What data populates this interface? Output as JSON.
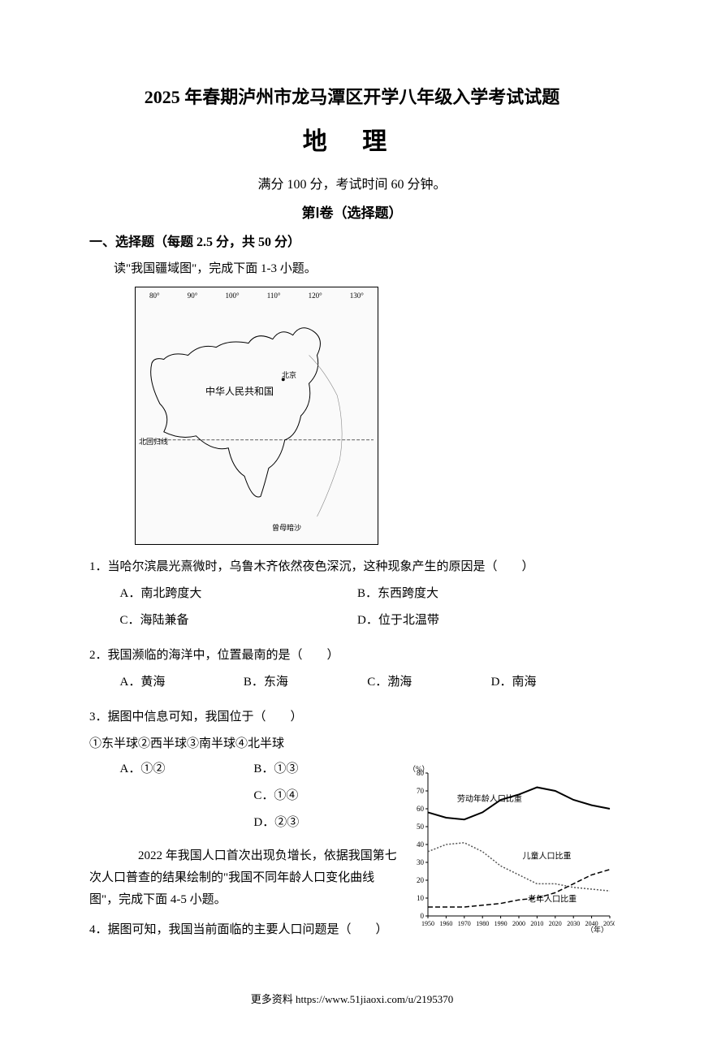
{
  "header": {
    "title_main": "2025 年春期泸州市龙马潭区开学八年级入学考试试题",
    "title_subject": "地 理",
    "exam_info": "满分 100 分，考试时间 60 分钟。",
    "section_header": "第Ⅰ卷（选择题）"
  },
  "section1": {
    "label": "一、选择题（每题 2.5 分，共 50 分）",
    "reading1": "读\"我国疆域图\"，完成下面 1-3 小题。"
  },
  "map": {
    "lons": [
      "80°",
      "90°",
      "100°",
      "110°",
      "120°",
      "130°"
    ],
    "center_label": "中华人民共和国",
    "beijing": "北京",
    "huigui": "北回归线",
    "zengmu": "曾母暗沙"
  },
  "q1": {
    "stem": "1．当哈尔滨晨光熹微时，乌鲁木齐依然夜色深沉，这种现象产生的原因是（　　）",
    "A": "A．南北跨度大",
    "B": "B．东西跨度大",
    "C": "C．海陆兼备",
    "D": "D．位于北温带"
  },
  "q2": {
    "stem": "2．我国濒临的海洋中，位置最南的是（　　）",
    "A": "A．黄海",
    "B": "B．东海",
    "C": "C．渤海",
    "D": "D．南海"
  },
  "q3": {
    "stem": "3．据图中信息可知，我国位于（　　）",
    "sub": "①东半球②西半球③南半球④北半球",
    "A": "A．①②",
    "B": "B．①③",
    "C": "C．①④",
    "D": "D．②③"
  },
  "reading2": "　　2022 年我国人口首次出现负增长，依据我国第七次人口普查的结果绘制的\"我国不同年龄人口变化曲线图\"，完成下面 4-5 小题。",
  "q4": {
    "stem": "4．据图可知，我国当前面临的主要人口问题是（　　）"
  },
  "chart": {
    "ylabel": "（%）",
    "ylim": [
      0,
      80
    ],
    "yticks": [
      0,
      10,
      20,
      30,
      40,
      50,
      60,
      70,
      80
    ],
    "xlabel": "（年）",
    "xticks": [
      1950,
      1960,
      1970,
      1980,
      1990,
      2000,
      2010,
      2020,
      2030,
      2040,
      2050
    ],
    "series": {
      "labor": {
        "label": "劳动年龄人口比重",
        "style": "solid",
        "color": "#000000",
        "width": 2,
        "values": [
          [
            1950,
            58
          ],
          [
            1960,
            55
          ],
          [
            1970,
            54
          ],
          [
            1980,
            58
          ],
          [
            1990,
            65
          ],
          [
            2000,
            68
          ],
          [
            2010,
            72
          ],
          [
            2020,
            70
          ],
          [
            2030,
            65
          ],
          [
            2040,
            62
          ],
          [
            2050,
            60
          ]
        ]
      },
      "child": {
        "label": "儿童人口比重",
        "style": "dotted",
        "color": "#555555",
        "width": 1.5,
        "values": [
          [
            1950,
            36
          ],
          [
            1960,
            40
          ],
          [
            1970,
            41
          ],
          [
            1980,
            36
          ],
          [
            1990,
            28
          ],
          [
            2000,
            23
          ],
          [
            2010,
            18
          ],
          [
            2020,
            18
          ],
          [
            2030,
            16
          ],
          [
            2040,
            15
          ],
          [
            2050,
            14
          ]
        ]
      },
      "elder": {
        "label": "老年人口比重",
        "style": "dashed",
        "color": "#000000",
        "width": 1.5,
        "values": [
          [
            1950,
            5
          ],
          [
            1960,
            5
          ],
          [
            1970,
            5
          ],
          [
            1980,
            6
          ],
          [
            1990,
            7
          ],
          [
            2000,
            9
          ],
          [
            2010,
            10
          ],
          [
            2020,
            13
          ],
          [
            2030,
            18
          ],
          [
            2040,
            23
          ],
          [
            2050,
            26
          ]
        ]
      }
    },
    "background": "#ffffff",
    "axis_color": "#000000",
    "font_size": 9
  },
  "footer": {
    "url": "https://www.51jiaoxi.com/u/2195370",
    "prefix": "更多资料 "
  }
}
